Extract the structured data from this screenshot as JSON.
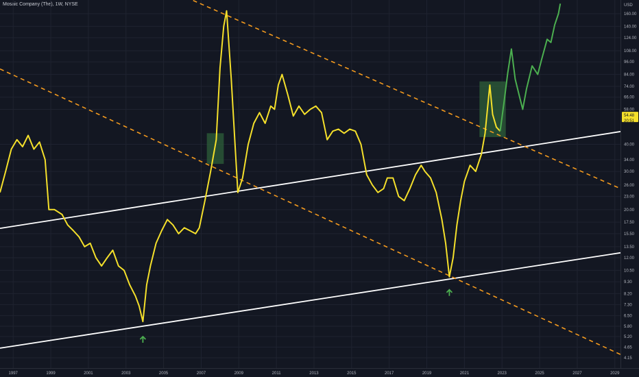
{
  "header": {
    "title": "Mosaic Company (The), 1W, NYSE"
  },
  "chart_data": {
    "type": "line",
    "currency": "USD",
    "x_range": [
      1996.3,
      2029.3
    ],
    "x_ticks": [
      {
        "value": 1997,
        "label": "1997"
      },
      {
        "value": 1999,
        "label": "1999"
      },
      {
        "value": 2001,
        "label": "2001"
      },
      {
        "value": 2003,
        "label": "2003"
      },
      {
        "value": 2005,
        "label": "2005"
      },
      {
        "value": 2007,
        "label": "2007"
      },
      {
        "value": 2009,
        "label": "2009"
      },
      {
        "value": 2011,
        "label": "2011"
      },
      {
        "value": 2013,
        "label": "2013"
      },
      {
        "value": 2015,
        "label": "2015"
      },
      {
        "value": 2017,
        "label": "2017"
      },
      {
        "value": 2019,
        "label": "2019"
      },
      {
        "value": 2021,
        "label": "2021"
      },
      {
        "value": 2023,
        "label": "2023"
      },
      {
        "value": 2025,
        "label": "2025"
      },
      {
        "value": 2027,
        "label": "2027"
      },
      {
        "value": 2029,
        "label": "2029"
      }
    ],
    "y_scale": "log",
    "y_ticks": [
      {
        "value": 160,
        "label": "160.00"
      },
      {
        "value": 140,
        "label": "140.00"
      },
      {
        "value": 124,
        "label": "124.00"
      },
      {
        "value": 108,
        "label": "108.00"
      },
      {
        "value": 96,
        "label": "96.00"
      },
      {
        "value": 84,
        "label": "84.00"
      },
      {
        "value": 74,
        "label": "74.00"
      },
      {
        "value": 66,
        "label": "66.00"
      },
      {
        "value": 58,
        "label": "58.00"
      },
      {
        "value": 40,
        "label": "40.00"
      },
      {
        "value": 34,
        "label": "34.00"
      },
      {
        "value": 30,
        "label": "30.00"
      },
      {
        "value": 26,
        "label": "26.00"
      },
      {
        "value": 23,
        "label": "23.00"
      },
      {
        "value": 20,
        "label": "20.00"
      },
      {
        "value": 17.5,
        "label": "17.50"
      },
      {
        "value": 15.5,
        "label": "15.50"
      },
      {
        "value": 13.5,
        "label": "13.50"
      },
      {
        "value": 12,
        "label": "12.00"
      },
      {
        "value": 10.5,
        "label": "10.50"
      },
      {
        "value": 9.3,
        "label": "9.30"
      },
      {
        "value": 8.2,
        "label": "8.20"
      },
      {
        "value": 7.3,
        "label": "7.30"
      },
      {
        "value": 6.5,
        "label": "6.50"
      },
      {
        "value": 5.8,
        "label": "5.80"
      },
      {
        "value": 5.2,
        "label": "5.20"
      },
      {
        "value": 4.65,
        "label": "4.65"
      },
      {
        "value": 4.15,
        "label": "4.15"
      }
    ],
    "price_tags": [
      {
        "label": "54.48",
        "value": 54.48
      },
      {
        "label": "20:51",
        "value": 51.4
      }
    ],
    "series": [
      {
        "color": "#f5e02b",
        "points": [
          [
            1996.3,
            24
          ],
          [
            1996.6,
            30
          ],
          [
            1996.9,
            38
          ],
          [
            1997.2,
            42
          ],
          [
            1997.5,
            39
          ],
          [
            1997.8,
            44
          ],
          [
            1998.1,
            38
          ],
          [
            1998.4,
            41
          ],
          [
            1998.7,
            34
          ],
          [
            1998.9,
            20
          ],
          [
            1999.2,
            20
          ],
          [
            1999.6,
            19
          ],
          [
            1999.9,
            17
          ],
          [
            2000.2,
            16
          ],
          [
            2000.5,
            15
          ],
          [
            2000.8,
            13.5
          ],
          [
            2001.1,
            14
          ],
          [
            2001.4,
            12
          ],
          [
            2001.7,
            11
          ],
          [
            2002.0,
            12
          ],
          [
            2002.3,
            13
          ],
          [
            2002.6,
            11
          ],
          [
            2002.9,
            10.5
          ],
          [
            2003.2,
            9
          ],
          [
            2003.5,
            8
          ],
          [
            2003.7,
            7.2
          ],
          [
            2003.9,
            6.1
          ],
          [
            2004.1,
            9
          ],
          [
            2004.3,
            11
          ],
          [
            2004.6,
            14
          ],
          [
            2004.9,
            16
          ],
          [
            2005.2,
            18
          ],
          [
            2005.5,
            17
          ],
          [
            2005.8,
            15.5
          ],
          [
            2006.1,
            16.5
          ],
          [
            2006.4,
            16
          ],
          [
            2006.7,
            15.5
          ],
          [
            2006.9,
            16.5
          ],
          [
            2007.2,
            22
          ],
          [
            2007.5,
            30
          ],
          [
            2007.8,
            42
          ],
          [
            2008.0,
            90
          ],
          [
            2008.2,
            140
          ],
          [
            2008.35,
            165
          ],
          [
            2008.6,
            80
          ],
          [
            2008.8,
            40
          ],
          [
            2008.95,
            24
          ],
          [
            2009.2,
            28
          ],
          [
            2009.5,
            40
          ],
          [
            2009.8,
            50
          ],
          [
            2010.1,
            56
          ],
          [
            2010.4,
            50
          ],
          [
            2010.7,
            60
          ],
          [
            2010.9,
            58
          ],
          [
            2011.1,
            75
          ],
          [
            2011.3,
            84
          ],
          [
            2011.6,
            68
          ],
          [
            2011.9,
            54
          ],
          [
            2012.2,
            60
          ],
          [
            2012.5,
            55
          ],
          [
            2012.8,
            58
          ],
          [
            2013.1,
            60
          ],
          [
            2013.4,
            56
          ],
          [
            2013.7,
            42
          ],
          [
            2014.0,
            46
          ],
          [
            2014.3,
            47
          ],
          [
            2014.6,
            45
          ],
          [
            2014.9,
            47
          ],
          [
            2015.2,
            46
          ],
          [
            2015.5,
            40
          ],
          [
            2015.8,
            29
          ],
          [
            2016.1,
            26
          ],
          [
            2016.4,
            24
          ],
          [
            2016.7,
            25
          ],
          [
            2016.9,
            28
          ],
          [
            2017.2,
            28
          ],
          [
            2017.5,
            23
          ],
          [
            2017.8,
            22
          ],
          [
            2018.1,
            25
          ],
          [
            2018.4,
            29
          ],
          [
            2018.7,
            32
          ],
          [
            2018.9,
            30
          ],
          [
            2019.2,
            28
          ],
          [
            2019.5,
            24
          ],
          [
            2019.8,
            18
          ],
          [
            2020.0,
            14
          ],
          [
            2020.2,
            9.8
          ],
          [
            2020.4,
            12
          ],
          [
            2020.6,
            17
          ],
          [
            2020.8,
            22
          ],
          [
            2021.0,
            27
          ],
          [
            2021.3,
            32
          ],
          [
            2021.6,
            30
          ],
          [
            2021.9,
            36
          ],
          [
            2022.1,
            45
          ],
          [
            2022.35,
            75
          ],
          [
            2022.5,
            55
          ],
          [
            2022.7,
            48
          ],
          [
            2022.9,
            46
          ]
        ]
      },
      {
        "color": "#4caf50",
        "points": [
          [
            2022.9,
            46
          ],
          [
            2023.1,
            62
          ],
          [
            2023.3,
            85
          ],
          [
            2023.5,
            110
          ],
          [
            2023.7,
            80
          ],
          [
            2023.9,
            68
          ],
          [
            2024.1,
            58
          ],
          [
            2024.3,
            72
          ],
          [
            2024.6,
            92
          ],
          [
            2024.9,
            84
          ],
          [
            2025.1,
            98
          ],
          [
            2025.4,
            122
          ],
          [
            2025.6,
            118
          ],
          [
            2025.8,
            142
          ],
          [
            2026.0,
            160
          ],
          [
            2026.1,
            178
          ]
        ]
      }
    ],
    "trend_lines": [
      {
        "style": "solid",
        "color": "#ffffff",
        "points": [
          [
            1996.3,
            16.4
          ],
          [
            2029.3,
            45.8
          ]
        ]
      },
      {
        "style": "solid",
        "color": "#ffffff",
        "points": [
          [
            1996.3,
            4.6
          ],
          [
            2029.3,
            12.65
          ]
        ]
      },
      {
        "style": "dashed",
        "color": "#f59b1e",
        "points": [
          [
            1996.3,
            89
          ],
          [
            2029.3,
            4.3
          ]
        ]
      },
      {
        "style": "dashed",
        "color": "#f59b1e",
        "points": [
          [
            2001.8,
            280
          ],
          [
            2029.3,
            25
          ]
        ]
      }
    ],
    "highlight_zones": [
      {
        "color": "#2e5f3a",
        "x": [
          2007.3,
          2008.2
        ],
        "y": [
          32.5,
          45
        ]
      },
      {
        "color": "#2e5f3a",
        "x": [
          2021.8,
          2023.2
        ],
        "y": [
          43.2,
          78
        ]
      }
    ],
    "markers": [
      {
        "type": "arrow-up",
        "color": "#4caf50",
        "x": 2003.9,
        "y": 5.05
      },
      {
        "type": "arrow-up",
        "color": "#4caf50",
        "x": 2020.2,
        "y": 8.3
      }
    ]
  }
}
